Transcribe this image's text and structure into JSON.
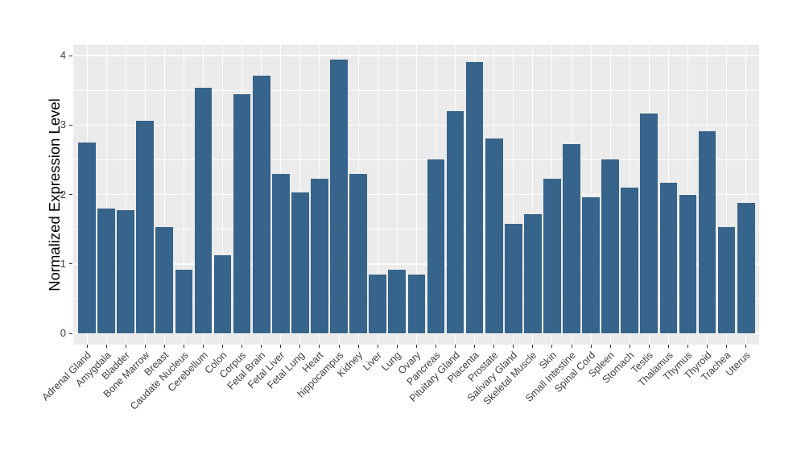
{
  "chart_data": {
    "type": "bar",
    "ylabel": "Normalized Expression Level",
    "categories": [
      "Adrenal Gland",
      "Amygdala",
      "Bladder",
      "Bone Marrow",
      "Breast",
      "Caudate Nucleus",
      "Cerebellum",
      "Colon",
      "Corpus",
      "Fetal Brain",
      "Fetal Liver",
      "Fetal Lung",
      "Heart",
      "hippocampus",
      "Kidney",
      "Liver",
      "Lung",
      "Ovary",
      "Pancreas",
      "Pituitary Gland",
      "Placenta",
      "Prostate",
      "Salivary Gland",
      "Skeletal Muscle",
      "Skin",
      "Small Intestine",
      "Spinal Cord",
      "Spleen",
      "Stomach",
      "Testis",
      "Thalamus",
      "Thymus",
      "Thyroid",
      "Trachea",
      "Uterus"
    ],
    "values": [
      2.75,
      1.8,
      1.77,
      3.06,
      1.53,
      0.92,
      3.54,
      1.13,
      3.44,
      3.71,
      2.3,
      2.03,
      2.23,
      3.94,
      2.29,
      0.85,
      0.92,
      0.85,
      2.51,
      3.2,
      3.91,
      2.81,
      1.58,
      1.72,
      2.23,
      2.73,
      1.96,
      2.51,
      2.1,
      3.17,
      2.17,
      2.0,
      2.91,
      1.53,
      1.88
    ],
    "ylim": [
      0,
      4
    ],
    "yticks": [
      0,
      1,
      2,
      3,
      4
    ],
    "grid": "horizontal major+minor, vertical major per category",
    "legend": "none",
    "colors": {
      "bar": "#36648b",
      "panel_bg": "#ebebeb",
      "grid_major": "#ffffff",
      "grid_minor": "#ffffff",
      "axis_text": "#404040",
      "axis_title": "#000000",
      "tick_mark": "#333333",
      "background": "#ffffff"
    }
  }
}
